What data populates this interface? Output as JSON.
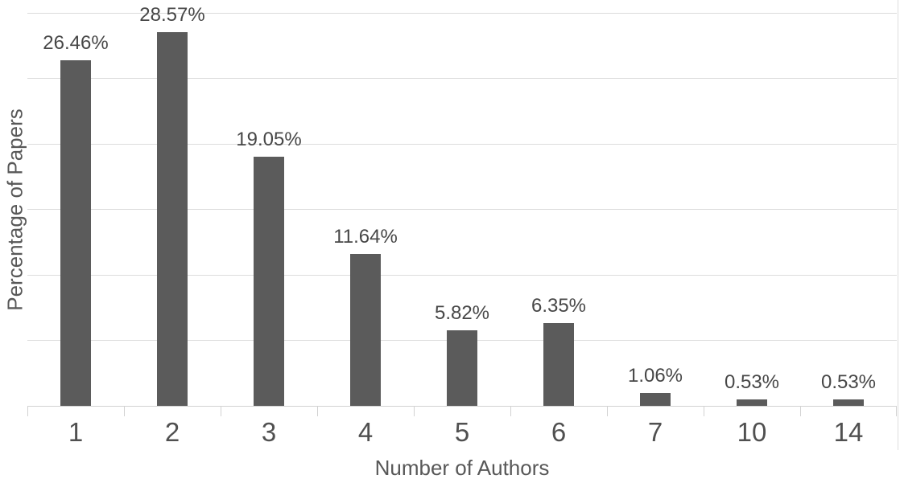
{
  "chart_data": {
    "type": "bar",
    "title": "",
    "xlabel": "Number of Authors",
    "ylabel": "Percentage of Papers",
    "categories": [
      "1",
      "2",
      "3",
      "4",
      "5",
      "6",
      "7",
      "10",
      "14"
    ],
    "values": [
      26.46,
      28.57,
      19.05,
      11.64,
      5.82,
      6.35,
      1.06,
      0.53,
      0.53
    ],
    "data_labels": [
      "26.46%",
      "28.57%",
      "19.05%",
      "11.64%",
      "5.82%",
      "6.35%",
      "1.06%",
      "0.53%",
      "0.53%"
    ],
    "ylim": [
      0,
      30
    ],
    "grid": true,
    "gridline_step": 5,
    "legend_position": "none",
    "bar_color": "#5b5b5b",
    "gridline_color": "#dcdcdc",
    "axis_line_color": "#d2d2d2",
    "value_label_color": "#474747",
    "tick_label_color": "#505050",
    "axis_title_color": "#585858"
  }
}
